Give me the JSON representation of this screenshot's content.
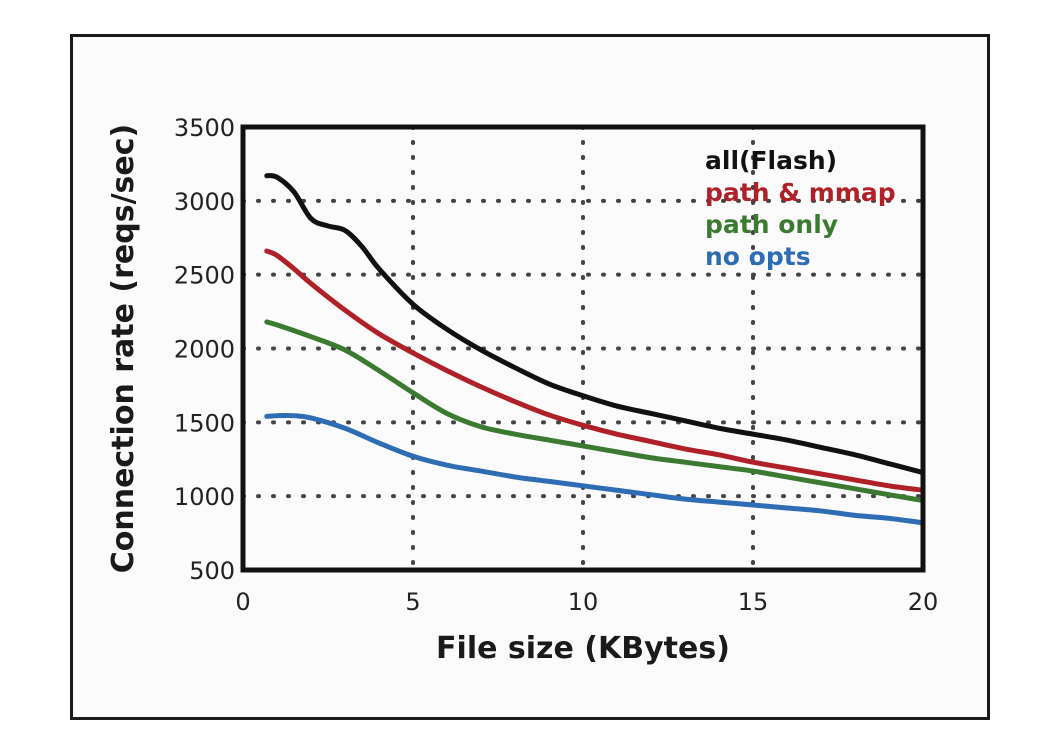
{
  "chart_data": {
    "type": "line",
    "title": "",
    "xlabel": "File size (KBytes)",
    "ylabel": "Connection rate (reqs/sec)",
    "xlim": [
      0,
      20
    ],
    "ylim": [
      500,
      3500
    ],
    "xticks": [
      0,
      5,
      10,
      15,
      20
    ],
    "yticks": [
      500,
      1000,
      1500,
      2000,
      2500,
      3000,
      3500
    ],
    "grid": "dotted",
    "legend_position": "top-right",
    "series": [
      {
        "name": "all(Flash)",
        "color": "#111111",
        "points": [
          [
            0.7,
            3170
          ],
          [
            1.0,
            3160
          ],
          [
            1.5,
            3060
          ],
          [
            2.0,
            2880
          ],
          [
            2.5,
            2830
          ],
          [
            3.0,
            2800
          ],
          [
            3.5,
            2690
          ],
          [
            4.0,
            2540
          ],
          [
            5.0,
            2300
          ],
          [
            6.0,
            2130
          ],
          [
            7.0,
            1990
          ],
          [
            8.0,
            1870
          ],
          [
            9.0,
            1760
          ],
          [
            10.0,
            1680
          ],
          [
            11.0,
            1610
          ],
          [
            12.0,
            1560
          ],
          [
            13.0,
            1510
          ],
          [
            14.0,
            1460
          ],
          [
            15.0,
            1420
          ],
          [
            16.0,
            1380
          ],
          [
            17.0,
            1330
          ],
          [
            18.0,
            1280
          ],
          [
            19.0,
            1220
          ],
          [
            20.0,
            1160
          ]
        ]
      },
      {
        "name": "path & mmap",
        "color": "#b02028",
        "points": [
          [
            0.7,
            2660
          ],
          [
            1.0,
            2630
          ],
          [
            1.5,
            2540
          ],
          [
            2.0,
            2440
          ],
          [
            3.0,
            2260
          ],
          [
            4.0,
            2100
          ],
          [
            5.0,
            1970
          ],
          [
            6.0,
            1850
          ],
          [
            7.0,
            1740
          ],
          [
            8.0,
            1640
          ],
          [
            9.0,
            1550
          ],
          [
            10.0,
            1480
          ],
          [
            11.0,
            1420
          ],
          [
            12.0,
            1370
          ],
          [
            13.0,
            1320
          ],
          [
            14.0,
            1280
          ],
          [
            15.0,
            1230
          ],
          [
            16.0,
            1190
          ],
          [
            17.0,
            1150
          ],
          [
            18.0,
            1110
          ],
          [
            19.0,
            1070
          ],
          [
            20.0,
            1040
          ]
        ]
      },
      {
        "name": "path only",
        "color": "#3c7a32",
        "points": [
          [
            0.7,
            2180
          ],
          [
            1.0,
            2160
          ],
          [
            2.0,
            2080
          ],
          [
            3.0,
            1990
          ],
          [
            4.0,
            1850
          ],
          [
            5.0,
            1700
          ],
          [
            6.0,
            1560
          ],
          [
            7.0,
            1470
          ],
          [
            8.0,
            1420
          ],
          [
            9.0,
            1380
          ],
          [
            10.0,
            1340
          ],
          [
            11.0,
            1300
          ],
          [
            12.0,
            1260
          ],
          [
            13.0,
            1230
          ],
          [
            14.0,
            1200
          ],
          [
            15.0,
            1170
          ],
          [
            16.0,
            1130
          ],
          [
            17.0,
            1090
          ],
          [
            18.0,
            1050
          ],
          [
            19.0,
            1010
          ],
          [
            20.0,
            970
          ]
        ]
      },
      {
        "name": "no opts",
        "color": "#2e6db4",
        "points": [
          [
            0.7,
            1540
          ],
          [
            1.0,
            1545
          ],
          [
            1.5,
            1545
          ],
          [
            2.0,
            1530
          ],
          [
            3.0,
            1460
          ],
          [
            4.0,
            1360
          ],
          [
            5.0,
            1270
          ],
          [
            6.0,
            1210
          ],
          [
            7.0,
            1170
          ],
          [
            8.0,
            1130
          ],
          [
            9.0,
            1100
          ],
          [
            10.0,
            1070
          ],
          [
            11.0,
            1040
          ],
          [
            12.0,
            1010
          ],
          [
            13.0,
            980
          ],
          [
            14.0,
            960
          ],
          [
            15.0,
            940
          ],
          [
            16.0,
            920
          ],
          [
            17.0,
            900
          ],
          [
            18.0,
            870
          ],
          [
            19.0,
            850
          ],
          [
            20.0,
            820
          ]
        ]
      }
    ]
  }
}
